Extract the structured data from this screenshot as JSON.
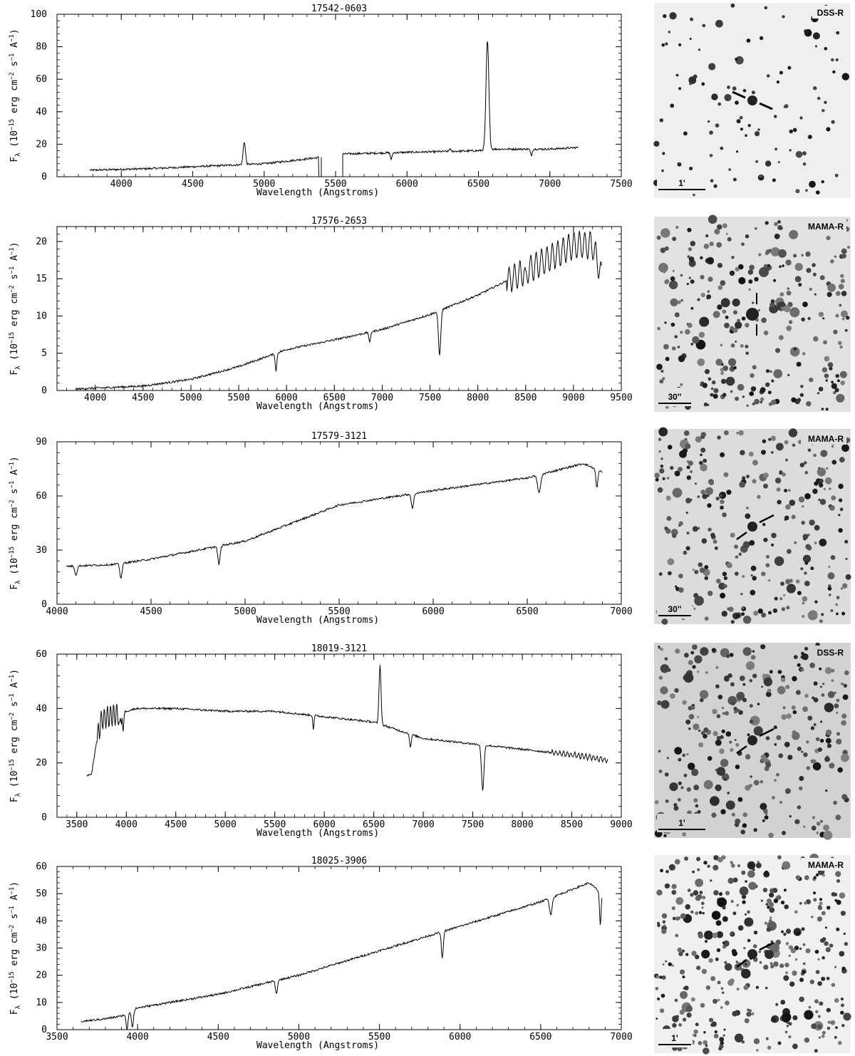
{
  "chart_data": [
    {
      "type": "line",
      "title": "17542-0603",
      "xlabel": "Wavelength (Angstroms)",
      "ylabel": "F_λ (10^-15 erg cm^-2 s^-1 A^-1)",
      "xlim": [
        3550,
        7500
      ],
      "ylim": [
        0,
        100
      ],
      "xticks": [
        4000,
        4500,
        5000,
        5500,
        6000,
        6500,
        7000,
        7500
      ],
      "yticks": [
        0,
        20,
        40,
        60,
        80,
        100
      ],
      "continuum": [
        [
          3780,
          4
        ],
        [
          4200,
          5
        ],
        [
          4600,
          6.5
        ],
        [
          5000,
          8
        ],
        [
          5400,
          12
        ],
        [
          5550,
          14
        ],
        [
          6000,
          15
        ],
        [
          6500,
          16
        ],
        [
          6600,
          17
        ],
        [
          7000,
          17
        ],
        [
          7200,
          18
        ]
      ],
      "gaps": [
        [
          5400,
          5550
        ]
      ],
      "features": [
        [
          4861,
          14,
          8
        ],
        [
          5890,
          -4,
          6
        ],
        [
          6563,
          67,
          10
        ],
        [
          6870,
          -4,
          6
        ],
        [
          6300,
          2,
          4
        ]
      ],
      "x_start": 3780,
      "x_end": 7200,
      "image": {
        "survey": "DSS-R",
        "scale": "1'",
        "background": "#efefef",
        "marker": "diag-down"
      }
    },
    {
      "type": "line",
      "title": "17576-2653",
      "xlabel": "Wavelength (Angstroms)",
      "ylabel": "F_λ (10^-15 erg cm^-2 s^-1 A^-1)",
      "xlim": [
        3600,
        9500
      ],
      "ylim": [
        0,
        22
      ],
      "xticks": [
        4000,
        4500,
        5000,
        5500,
        6000,
        6500,
        7000,
        7500,
        8000,
        8500,
        9000,
        9500
      ],
      "yticks": [
        0,
        5,
        10,
        15,
        20
      ],
      "continuum": [
        [
          3800,
          0.2
        ],
        [
          4500,
          0.6
        ],
        [
          5000,
          1.5
        ],
        [
          5500,
          3.2
        ],
        [
          6000,
          5.5
        ],
        [
          6500,
          6.8
        ],
        [
          7000,
          8.2
        ],
        [
          7500,
          10.2
        ],
        [
          8000,
          12.8
        ],
        [
          8500,
          16
        ],
        [
          9000,
          19.5
        ],
        [
          9200,
          19.5
        ],
        [
          9300,
          15
        ]
      ],
      "gaps": [],
      "features": [
        [
          5890,
          -2.5,
          8
        ],
        [
          7600,
          -6,
          12
        ],
        [
          6870,
          -1.5,
          8
        ],
        [
          8500,
          -1.5,
          8
        ]
      ],
      "x_start": 3800,
      "x_end": 9300,
      "image": {
        "survey": "MAMA-R",
        "scale": "30''",
        "background": "#e2e2e2",
        "marker": "vertical"
      }
    },
    {
      "type": "line",
      "title": "17579-3121",
      "xlabel": "Wavelength (Angstroms)",
      "ylabel": "F_λ (10^-15 erg cm^-2 s^-1 A^-1)",
      "xlim": [
        4000,
        7000
      ],
      "ylim": [
        0,
        90
      ],
      "xticks": [
        4000,
        4500,
        5000,
        5500,
        6000,
        6500,
        7000
      ],
      "yticks": [
        0,
        30,
        60,
        90
      ],
      "continuum": [
        [
          4050,
          21
        ],
        [
          4300,
          22
        ],
        [
          4500,
          25
        ],
        [
          5000,
          35
        ],
        [
          5500,
          55
        ],
        [
          6000,
          63
        ],
        [
          6500,
          70
        ],
        [
          6800,
          78
        ],
        [
          6900,
          73
        ]
      ],
      "gaps": [],
      "features": [
        [
          4101,
          -5,
          6
        ],
        [
          4340,
          -8,
          6
        ],
        [
          4861,
          -10,
          6
        ],
        [
          5890,
          -8,
          6
        ],
        [
          6563,
          -10,
          8
        ],
        [
          6870,
          -10,
          5
        ]
      ],
      "x_start": 4050,
      "x_end": 6900,
      "image": {
        "survey": "MAMA-R",
        "scale": "30''",
        "background": "#dcdcdc",
        "marker": "diag-up"
      }
    },
    {
      "type": "line",
      "title": "18019-3121",
      "xlabel": "Wavelength (Angstroms)",
      "ylabel": "F_λ (10^-15 erg cm^-2 s^-1 A^-1)",
      "xlim": [
        3300,
        9000
      ],
      "ylim": [
        0,
        60
      ],
      "xticks": [
        3500,
        4000,
        4500,
        5000,
        5500,
        6000,
        6500,
        7000,
        7500,
        8000,
        8500,
        9000
      ],
      "yticks": [
        0,
        20,
        40,
        60
      ],
      "continuum": [
        [
          3600,
          15
        ],
        [
          3650,
          16
        ],
        [
          3700,
          28
        ],
        [
          3750,
          36
        ],
        [
          3900,
          38
        ],
        [
          4100,
          40
        ],
        [
          4500,
          40
        ],
        [
          5000,
          39
        ],
        [
          5500,
          39
        ],
        [
          6000,
          37
        ],
        [
          6500,
          35
        ],
        [
          7000,
          29
        ],
        [
          7500,
          27
        ],
        [
          8000,
          25
        ],
        [
          8500,
          23
        ],
        [
          8870,
          21
        ]
      ],
      "gaps": [],
      "features": [
        [
          6563,
          22,
          10
        ],
        [
          7600,
          -17,
          12
        ],
        [
          6870,
          -5,
          8
        ],
        [
          3934,
          -7,
          6
        ],
        [
          3968,
          -7,
          6
        ],
        [
          5890,
          -5,
          6
        ]
      ],
      "x_start": 3600,
      "x_end": 8870,
      "image": {
        "survey": "DSS-R",
        "scale": "1'",
        "background": "#d2d2d2",
        "marker": "diag-up"
      }
    },
    {
      "type": "line",
      "title": "18025-3906",
      "xlabel": "Wavelength (Angstroms)",
      "ylabel": "F_λ (10^-15 erg cm^-2 s^-1 A^-1)",
      "xlim": [
        3500,
        7000
      ],
      "ylim": [
        0,
        60
      ],
      "xticks": [
        3500,
        4000,
        4500,
        5000,
        5500,
        6000,
        6500,
        7000
      ],
      "yticks": [
        0,
        10,
        20,
        30,
        40,
        50,
        60
      ],
      "continuum": [
        [
          3650,
          3
        ],
        [
          3800,
          4
        ],
        [
          3900,
          5
        ],
        [
          4000,
          8
        ],
        [
          4500,
          13
        ],
        [
          5000,
          20
        ],
        [
          5500,
          29
        ],
        [
          6000,
          38
        ],
        [
          6500,
          47
        ],
        [
          6800,
          54
        ],
        [
          6880,
          50
        ]
      ],
      "gaps": [],
      "features": [
        [
          3934,
          -6,
          6
        ],
        [
          3968,
          -6,
          6
        ],
        [
          4861,
          -5,
          6
        ],
        [
          5890,
          -10,
          6
        ],
        [
          6563,
          -6,
          8
        ],
        [
          6870,
          -12,
          5
        ]
      ],
      "x_start": 3650,
      "x_end": 6880,
      "image": {
        "survey": "MAMA-R",
        "scale": "1'",
        "background": "#f0f0f0",
        "marker": "diag-up"
      }
    }
  ]
}
